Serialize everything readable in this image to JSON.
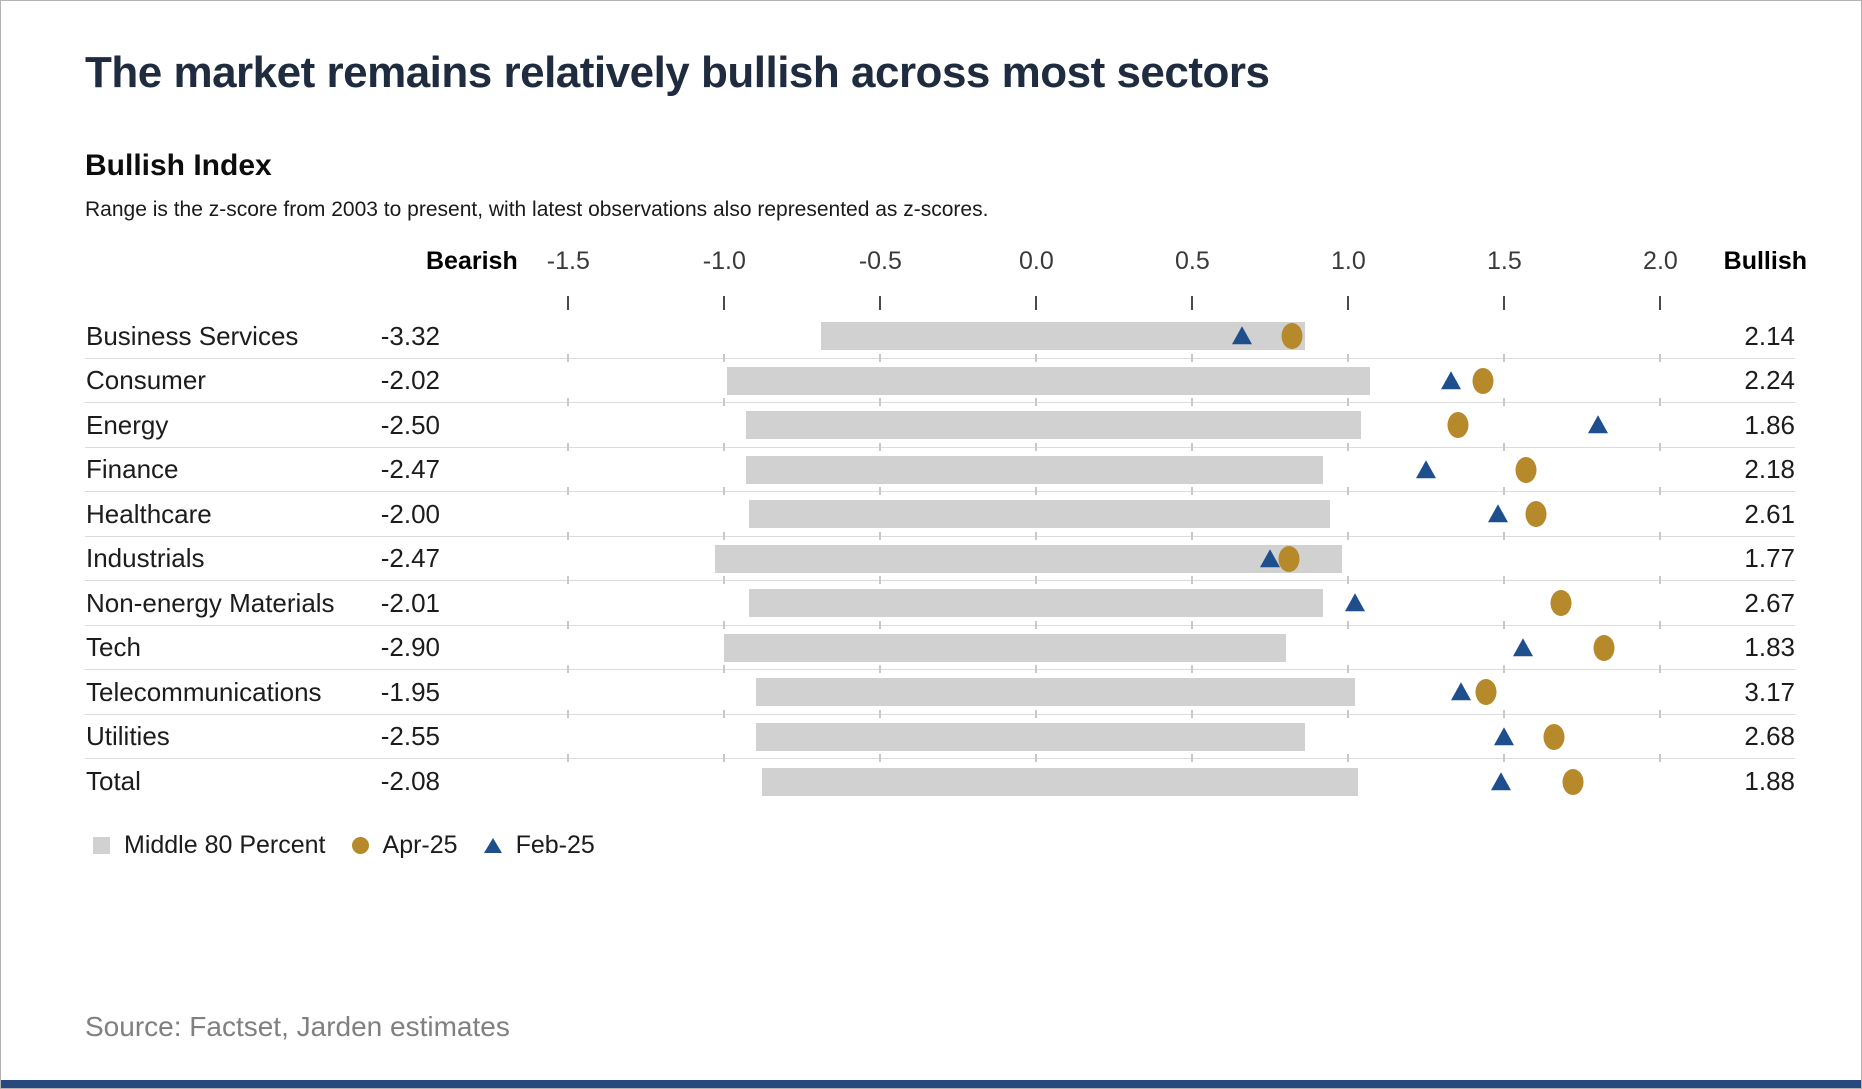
{
  "page": {
    "title": "The market remains relatively bullish across most sectors",
    "source": "Source: Factset, Jarden estimates"
  },
  "colors": {
    "accent_gold": "#b6892b",
    "accent_blue": "#1f4e8c",
    "range_gray": "#d1d1d1",
    "title_navy": "#1f2b3e",
    "bottom_bar_navy": "#27497d"
  },
  "chart_data": {
    "type": "range-dot",
    "title": "Bullish Index",
    "subtitle": "Range is the z-score from 2003 to present, with latest observations also represented as z-scores.",
    "axis": {
      "left_header": "Bearish",
      "right_header": "Bullish",
      "tick_labels": [
        "-1.5",
        "-1.0",
        "-0.5",
        "0.0",
        "0.5",
        "1.0",
        "1.5",
        "2.0"
      ],
      "tick_values": [
        -1.5,
        -1.0,
        -0.5,
        0.0,
        0.5,
        1.0,
        1.5,
        2.0
      ],
      "plot_range": [
        -1.86,
        2.13
      ],
      "grid": "row-separators-with-tick-stubs"
    },
    "legend": [
      {
        "label": "Middle 80 Percent",
        "marker": "square",
        "color": "#d1d1d1"
      },
      {
        "label": "Apr-25",
        "marker": "circle",
        "color": "#b6892b"
      },
      {
        "label": "Feb-25",
        "marker": "triangle",
        "color": "#1f4e8c"
      }
    ],
    "rows": [
      {
        "sector": "Business Services",
        "bearish": "-3.32",
        "range": [
          -0.69,
          0.86
        ],
        "feb25": 0.66,
        "apr25": 0.82,
        "bullish": "2.14"
      },
      {
        "sector": "Consumer",
        "bearish": "-2.02",
        "range": [
          -0.99,
          1.07
        ],
        "feb25": 1.33,
        "apr25": 1.43,
        "bullish": "2.24"
      },
      {
        "sector": "Energy",
        "bearish": "-2.50",
        "range": [
          -0.93,
          1.04
        ],
        "feb25": 1.8,
        "apr25": 1.35,
        "bullish": "1.86"
      },
      {
        "sector": "Finance",
        "bearish": "-2.47",
        "range": [
          -0.93,
          0.92
        ],
        "feb25": 1.25,
        "apr25": 1.57,
        "bullish": "2.18"
      },
      {
        "sector": "Healthcare",
        "bearish": "-2.00",
        "range": [
          -0.92,
          0.94
        ],
        "feb25": 1.48,
        "apr25": 1.6,
        "bullish": "2.61"
      },
      {
        "sector": "Industrials",
        "bearish": "-2.47",
        "range": [
          -1.03,
          0.98
        ],
        "feb25": 0.75,
        "apr25": 0.81,
        "bullish": "1.77"
      },
      {
        "sector": "Non-energy Materials",
        "bearish": "-2.01",
        "range": [
          -0.92,
          0.92
        ],
        "feb25": 1.02,
        "apr25": 1.68,
        "bullish": "2.67"
      },
      {
        "sector": "Tech",
        "bearish": "-2.90",
        "range": [
          -1.0,
          0.8
        ],
        "feb25": 1.56,
        "apr25": 1.82,
        "bullish": "1.83"
      },
      {
        "sector": "Telecommunications",
        "bearish": "-1.95",
        "range": [
          -0.9,
          1.02
        ],
        "feb25": 1.36,
        "apr25": 1.44,
        "bullish": "3.17"
      },
      {
        "sector": "Utilities",
        "bearish": "-2.55",
        "range": [
          -0.9,
          0.86
        ],
        "feb25": 1.5,
        "apr25": 1.66,
        "bullish": "2.68"
      },
      {
        "sector": "Total",
        "bearish": "-2.08",
        "range": [
          -0.88,
          1.03
        ],
        "feb25": 1.49,
        "apr25": 1.72,
        "bullish": "1.88"
      }
    ]
  }
}
